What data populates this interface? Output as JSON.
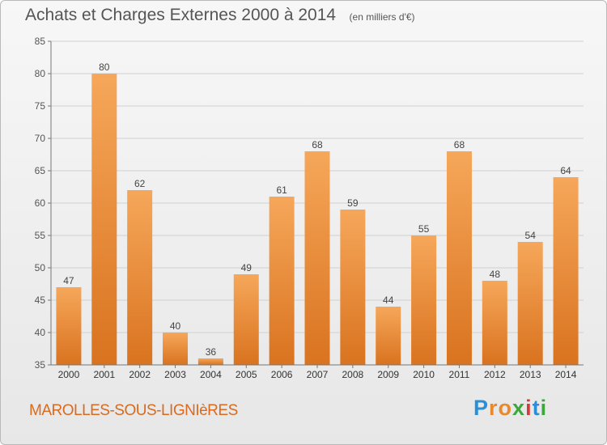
{
  "header": {
    "title": "Achats et Charges Externes 2000 à 2014",
    "subtitle": "(en milliers d'€)"
  },
  "footer": {
    "commune": "MAROLLES-SOUS-LIGNIèRES",
    "logo_text": "Proxiti"
  },
  "colors": {
    "bar_light": "#f6a75a",
    "bar_dark": "#d9731f",
    "commune_text": "#d96a1e",
    "grid": "#d0d0d0"
  },
  "chart_data": {
    "type": "bar",
    "title": "Achats et Charges Externes 2000 à 2014",
    "subtitle": "(en milliers d'€)",
    "categories": [
      "2000",
      "2001",
      "2002",
      "2003",
      "2004",
      "2005",
      "2006",
      "2007",
      "2008",
      "2009",
      "2010",
      "2011",
      "2012",
      "2013",
      "2014"
    ],
    "values": [
      47,
      80,
      62,
      40,
      36,
      49,
      61,
      68,
      59,
      44,
      55,
      68,
      48,
      54,
      64
    ],
    "ylim": [
      35,
      85
    ],
    "yticks": [
      35,
      40,
      45,
      50,
      55,
      60,
      65,
      70,
      75,
      80,
      85
    ],
    "grid": true,
    "xlabel": "",
    "ylabel": ""
  }
}
